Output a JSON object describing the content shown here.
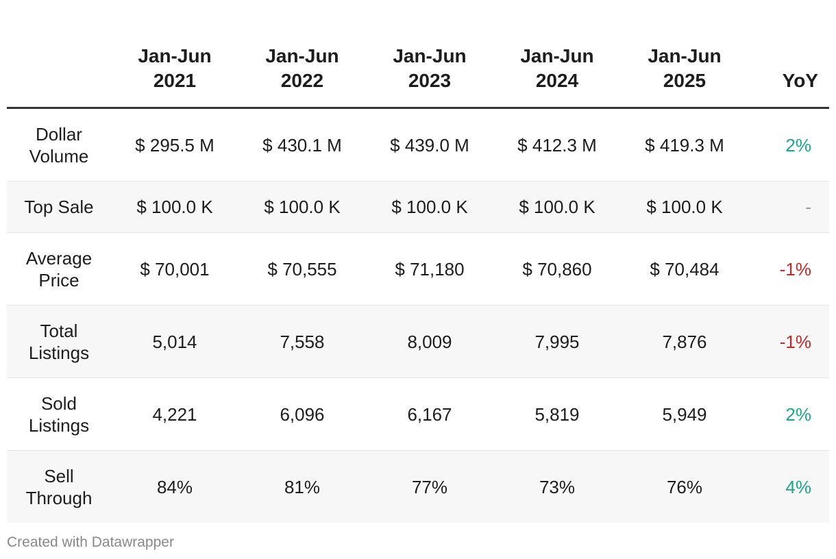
{
  "chart_data": {
    "type": "table",
    "columns": [
      "",
      "Jan-Jun\n2021",
      "Jan-Jun\n2022",
      "Jan-Jun\n2023",
      "Jan-Jun\n2024",
      "Jan-Jun\n2025",
      "YoY"
    ],
    "header": {
      "label": "",
      "years": [
        {
          "line1": "Jan-Jun",
          "line2": "2021"
        },
        {
          "line1": "Jan-Jun",
          "line2": "2022"
        },
        {
          "line1": "Jan-Jun",
          "line2": "2023"
        },
        {
          "line1": "Jan-Jun",
          "line2": "2024"
        },
        {
          "line1": "Jan-Jun",
          "line2": "2025"
        }
      ],
      "yoy": "YoY"
    },
    "rows": [
      {
        "label": "Dollar Volume",
        "values": [
          "$ 295.5 M",
          "$ 430.1 M",
          "$ 439.0 M",
          "$ 412.3 M",
          "$ 419.3 M"
        ],
        "yoy": "2%",
        "yoy_trend": "positive"
      },
      {
        "label": "Top Sale",
        "values": [
          "$ 100.0 K",
          "$ 100.0 K",
          "$ 100.0 K",
          "$ 100.0 K",
          "$ 100.0 K"
        ],
        "yoy": "-",
        "yoy_trend": "flat"
      },
      {
        "label": "Average Price",
        "values": [
          "$ 70,001",
          "$ 70,555",
          "$ 71,180",
          "$ 70,860",
          "$ 70,484"
        ],
        "yoy": "-1%",
        "yoy_trend": "negative"
      },
      {
        "label": "Total Listings",
        "values": [
          "5,014",
          "7,558",
          "8,009",
          "7,995",
          "7,876"
        ],
        "yoy": "-1%",
        "yoy_trend": "negative"
      },
      {
        "label": "Sold Listings",
        "values": [
          "4,221",
          "6,096",
          "6,167",
          "5,819",
          "5,949"
        ],
        "yoy": "2%",
        "yoy_trend": "positive"
      },
      {
        "label": "Sell Through",
        "values": [
          "84%",
          "81%",
          "77%",
          "73%",
          "76%"
        ],
        "yoy": "4%",
        "yoy_trend": "positive"
      }
    ],
    "colors": {
      "positive": "#18a88e",
      "negative": "#c62828",
      "flat": "#999999",
      "stripe": "#f7f7f7"
    }
  },
  "footer": {
    "credit": "Created with Datawrapper"
  }
}
